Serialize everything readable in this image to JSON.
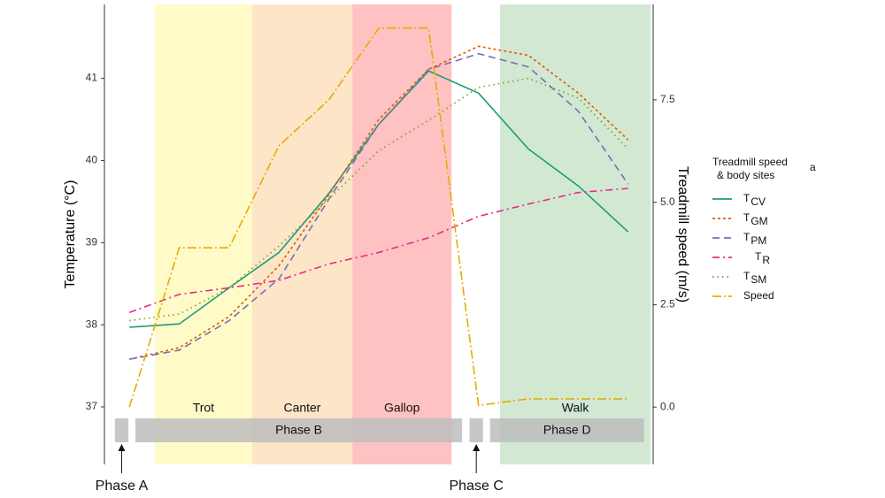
{
  "chart_data": {
    "type": "line",
    "x": [
      0,
      1,
      2,
      3,
      4,
      5,
      6,
      7,
      8,
      9,
      10
    ],
    "xlim": [
      -0.5,
      10.5
    ],
    "ylim": [
      36.3,
      41.9
    ],
    "yticks": [
      37,
      38,
      39,
      40,
      41
    ],
    "y2lim": [
      -1.4,
      9.83
    ],
    "y2ticks": [
      {
        "value": 0,
        "label": "0.0"
      },
      {
        "value": 2.5,
        "label": "2.5"
      },
      {
        "value": 5,
        "label": "5.0"
      },
      {
        "value": 7.5,
        "label": "7.5"
      }
    ],
    "ylabel": "Temperature (°C)",
    "y2label": "Treadmill speed (m/s)",
    "legend_title": [
      "Treadmill speed",
      "& body sites"
    ],
    "legend_title_sup": "a",
    "bands": [
      {
        "label": "Trot",
        "x": [
          0.51,
          2.46
        ],
        "color": "#fffbc8"
      },
      {
        "label": "Canter",
        "x": [
          2.46,
          4.47
        ],
        "color": "#fde5c8"
      },
      {
        "label": "Gallop",
        "x": [
          4.47,
          6.46
        ],
        "color": "#ffc2c2"
      },
      {
        "label": "Walk",
        "x": [
          7.43,
          10.45
        ],
        "color": "#d2e8d3"
      }
    ],
    "phases": [
      {
        "label": "Phase A",
        "x": [
          -0.29,
          -0.02
        ],
        "outside": true
      },
      {
        "label": "Phase B",
        "x": [
          0.12,
          6.67
        ]
      },
      {
        "label": "Phase C",
        "x": [
          6.82,
          7.09
        ],
        "outside": true
      },
      {
        "label": "Phase D",
        "x": [
          7.23,
          10.32
        ]
      }
    ],
    "series": [
      {
        "name": "T",
        "subscript": "CV",
        "color": "#1b9e77",
        "dash": "",
        "values": [
          37.97,
          38.01,
          38.45,
          38.88,
          39.6,
          40.44,
          41.09,
          40.82,
          40.14,
          39.69,
          39.13
        ]
      },
      {
        "name": "T",
        "subscript": "GM",
        "color": "#d95f02",
        "dash": "3,3",
        "values": [
          37.58,
          37.72,
          38.1,
          38.72,
          39.58,
          40.5,
          41.11,
          41.39,
          41.28,
          40.82,
          40.25
        ]
      },
      {
        "name": "T",
        "subscript": "PM",
        "color": "#7570b3",
        "dash": "8,5",
        "values": [
          37.58,
          37.69,
          38.05,
          38.56,
          39.53,
          40.44,
          41.11,
          41.3,
          41.14,
          40.6,
          39.71
        ]
      },
      {
        "name": "T",
        "subscript": "R",
        "color": "#e7298a",
        "dash": "8,4,2,4",
        "values": [
          38.15,
          38.37,
          38.45,
          38.54,
          38.74,
          38.88,
          39.06,
          39.32,
          39.47,
          39.61,
          39.66
        ]
      },
      {
        "name": "T",
        "subscript": "SM",
        "color": "#66a61e",
        "dash": "1.5,4",
        "values": [
          38.05,
          38.13,
          38.45,
          38.96,
          39.53,
          40.12,
          40.49,
          40.89,
          41.0,
          40.76,
          40.14
        ]
      },
      {
        "name": "Speed",
        "color": "#e6ab02",
        "dash": "10,3,2,3",
        "axis": "y2",
        "values": [
          0,
          3.89,
          3.89,
          6.38,
          7.5,
          9.25,
          9.25,
          0.04,
          0.2,
          0.2,
          0.2
        ]
      }
    ]
  }
}
